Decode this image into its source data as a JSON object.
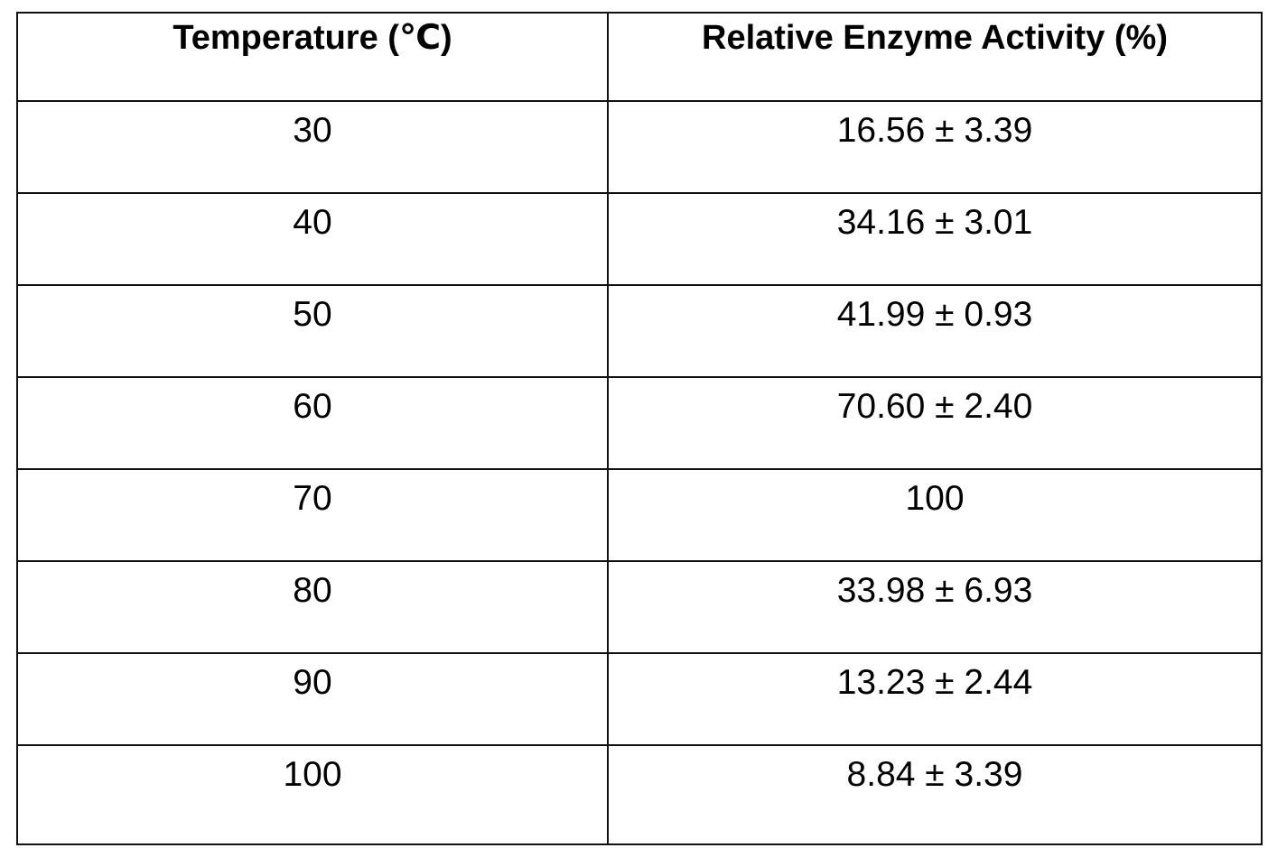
{
  "table": {
    "headers": [
      "Temperature (℃)",
      "Relative Enzyme Activity (%)"
    ],
    "rows": [
      [
        "30",
        "16.56 ± 3.39"
      ],
      [
        "40",
        "34.16 ± 3.01"
      ],
      [
        "50",
        "41.99 ± 0.93"
      ],
      [
        "60",
        "70.60 ± 2.40"
      ],
      [
        "70",
        "100"
      ],
      [
        "80",
        "33.98 ± 6.93"
      ],
      [
        "90",
        "13.23 ± 2.44"
      ],
      [
        "100",
        "8.84 ± 3.39"
      ]
    ]
  }
}
